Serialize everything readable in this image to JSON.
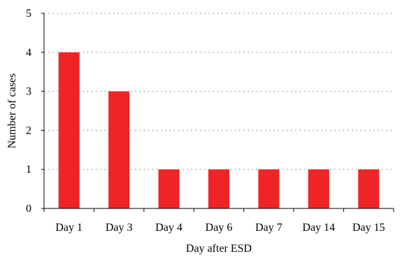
{
  "chart_data": {
    "type": "bar",
    "categories": [
      "Day 1",
      "Day 3",
      "Day 4",
      "Day 6",
      "Day 7",
      "Day 14",
      "Day 15"
    ],
    "values": [
      4,
      3,
      1,
      1,
      1,
      1,
      1
    ],
    "xlabel": "Day after ESD",
    "ylabel": "Number of cases",
    "ylim": [
      0,
      5
    ],
    "yticks": [
      0,
      1,
      2,
      3,
      4,
      5
    ],
    "grid": "horizontal dotted",
    "bar_color": "#ee2426"
  }
}
